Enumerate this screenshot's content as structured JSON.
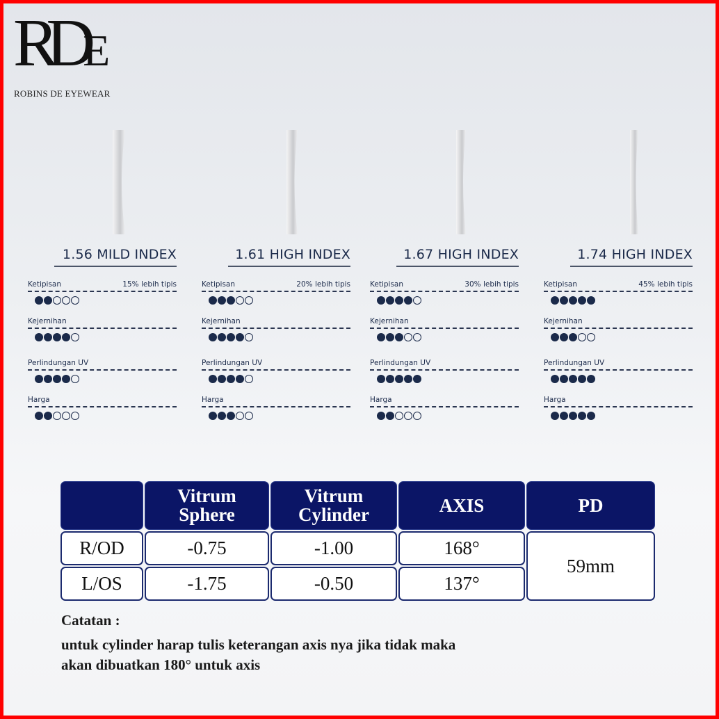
{
  "brand": {
    "logo_mark": "RDE",
    "name": "ROBINS DE EYEWEAR"
  },
  "lenses": [
    {
      "title": "1.56 MILD INDEX",
      "thinness_note": "15% lebih tipis",
      "ratings": {
        "ketipisan": 2,
        "kejernihan": 4,
        "uv": 4,
        "harga": 2
      }
    },
    {
      "title": "1.61 HIGH INDEX",
      "thinness_note": "20% lebih tipis",
      "ratings": {
        "ketipisan": 3,
        "kejernihan": 4,
        "uv": 4,
        "harga": 3
      }
    },
    {
      "title": "1.67 HIGH INDEX",
      "thinness_note": "30% lebih tipis",
      "ratings": {
        "ketipisan": 4,
        "kejernihan": 3,
        "uv": 5,
        "harga": 2
      }
    },
    {
      "title": "1.74 HIGH INDEX",
      "thinness_note": "45% lebih tipis",
      "ratings": {
        "ketipisan": 5,
        "kejernihan": 3,
        "uv": 5,
        "harga": 5
      }
    }
  ],
  "metric_labels": {
    "ketipisan": "Ketipisan",
    "kejernihan": "Kejernihan",
    "uv": "Perlindungan UV",
    "harga": "Harga"
  },
  "rating_max": 5,
  "prescription": {
    "headers": [
      "",
      "Vitrum\nSphere",
      "Vitrum\nCylinder",
      "AXIS",
      "PD"
    ],
    "rows": [
      {
        "eye": "R/OD",
        "sphere": "-0.75",
        "cylinder": "-1.00",
        "axis": "168°"
      },
      {
        "eye": "L/OS",
        "sphere": "-1.75",
        "cylinder": "-0.50",
        "axis": "137°"
      }
    ],
    "pd": "59mm"
  },
  "notes": {
    "title": "Catatan :",
    "lines": [
      "untuk cylinder harap tulis keterangan axis nya jika tidak maka",
      "akan dibuatkan 180° untuk axis"
    ]
  },
  "colors": {
    "navy": "#0b1566",
    "dot": "#1b2a4a",
    "frame": "#ff0000"
  }
}
